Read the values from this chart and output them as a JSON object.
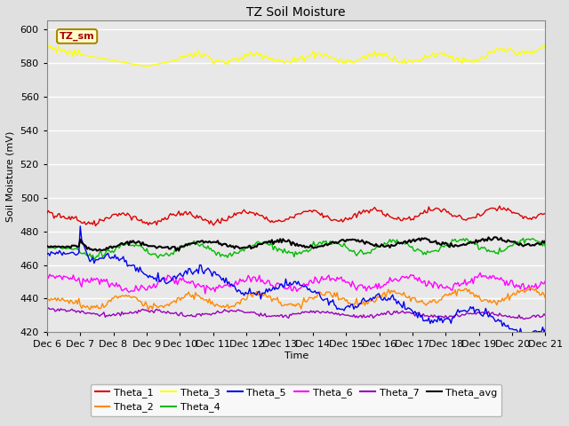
{
  "title": "TZ Soil Moisture",
  "ylabel": "Soil Moisture (mV)",
  "xlabel": "Time",
  "ylim": [
    420,
    605
  ],
  "yticks": [
    420,
    440,
    460,
    480,
    500,
    520,
    540,
    560,
    580,
    600
  ],
  "plot_bg": "#e8e8e8",
  "fig_bg": "#e0e0e0",
  "grid_color": "#ffffff",
  "series_colors": {
    "Theta_1": "#dd0000",
    "Theta_2": "#ff8800",
    "Theta_3": "#ffff00",
    "Theta_4": "#00bb00",
    "Theta_5": "#0000ee",
    "Theta_6": "#ff00ff",
    "Theta_7": "#9900bb",
    "Theta_avg": "#000000"
  },
  "legend_label": "TZ_sm",
  "legend_label_color": "#aa0000",
  "legend_label_bg": "#ffffcc",
  "legend_label_border": "#aa8800",
  "n_points": 360,
  "x_start": 6,
  "x_end": 21,
  "xtick_positions": [
    6,
    7,
    8,
    9,
    10,
    11,
    12,
    13,
    14,
    15,
    16,
    17,
    18,
    19,
    20,
    21
  ],
  "xtick_labels": [
    "Dec 6",
    "Dec 7",
    "Dec 8",
    "Dec 9",
    "Dec 10",
    "Dec 11",
    "Dec 12",
    "Dec 13",
    "Dec 14",
    "Dec 15",
    "Dec 16",
    "Dec 17",
    "Dec 18",
    "Dec 19",
    "Dec 20",
    "Dec 21"
  ]
}
